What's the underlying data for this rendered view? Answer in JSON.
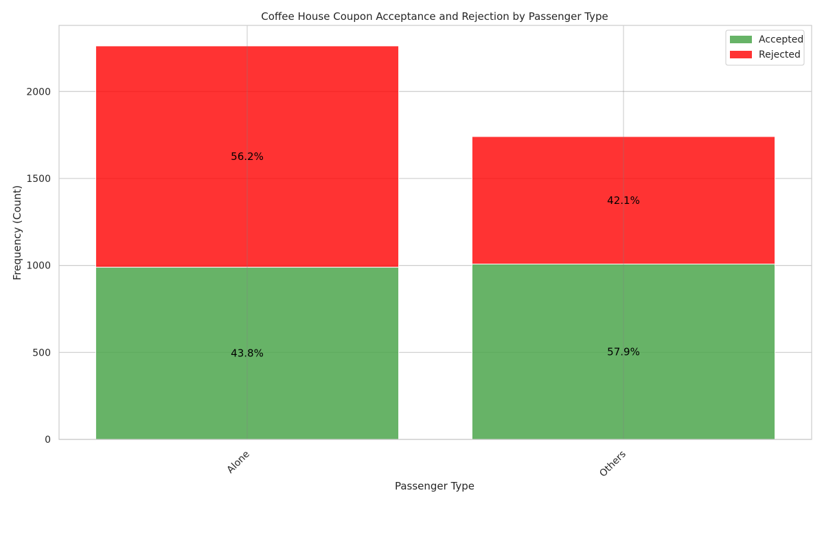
{
  "chart_data": {
    "type": "bar",
    "stacked": true,
    "title": "Coffee House Coupon Acceptance and Rejection by Passenger Type",
    "xlabel": "Passenger Type",
    "ylabel": "Frequency (Count)",
    "categories": [
      "Alone",
      "Others"
    ],
    "series": [
      {
        "name": "Accepted",
        "color": "#4ca64c",
        "values": [
          990,
          1008
        ],
        "labels": [
          "43.8%",
          "57.9%"
        ]
      },
      {
        "name": "Rejected",
        "color": "#ff0000",
        "values": [
          1272,
          733
        ],
        "labels": [
          "56.2%",
          "42.1%"
        ]
      }
    ],
    "ylim": [
      0,
      2380
    ],
    "yticks": [
      0,
      500,
      1000,
      1500,
      2000
    ],
    "grid": true,
    "legend_position": "top-right",
    "tick_rotation": 45
  }
}
